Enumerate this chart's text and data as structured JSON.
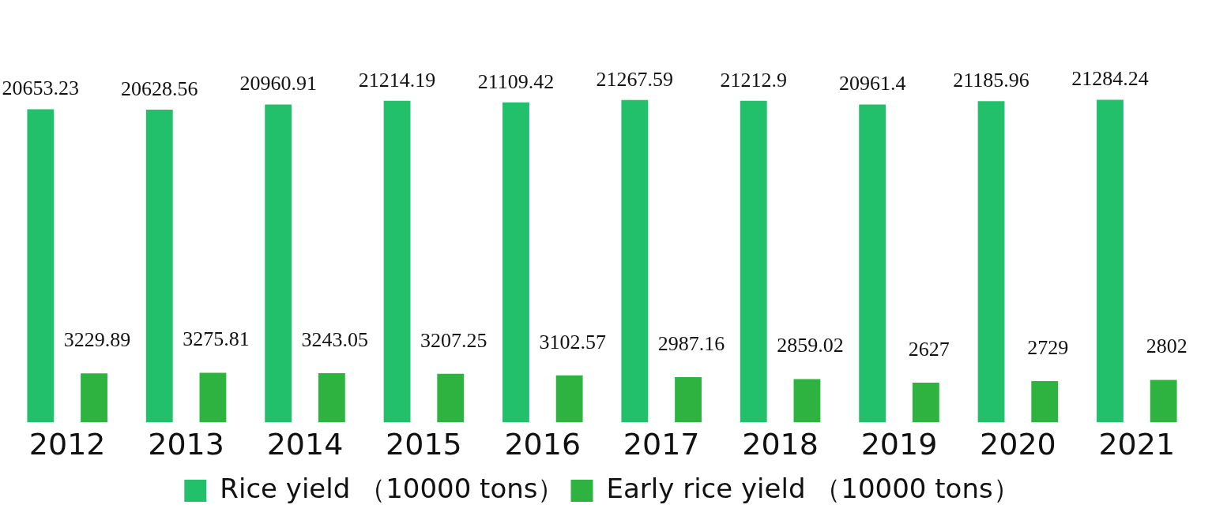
{
  "chart_data": {
    "type": "bar",
    "categories": [
      "2012",
      "2013",
      "2014",
      "2015",
      "2016",
      "2017",
      "2018",
      "2019",
      "2020",
      "2021"
    ],
    "series": [
      {
        "name": "Rice yield （10000 tons）",
        "color": "#22c06a",
        "values": [
          20653.23,
          20628.56,
          20960.91,
          21214.19,
          21109.42,
          21267.59,
          21212.9,
          20961.4,
          21185.96,
          21284.24
        ]
      },
      {
        "name": "Early rice yield （10000 tons）",
        "color": "#2eb340",
        "values": [
          3229.89,
          3275.81,
          3243.05,
          3207.25,
          3102.57,
          2987.16,
          2859.02,
          2627,
          2729,
          2802
        ]
      }
    ],
    "data_labels": true,
    "legend": "bottom",
    "grid": false,
    "tick_labels": "x"
  }
}
